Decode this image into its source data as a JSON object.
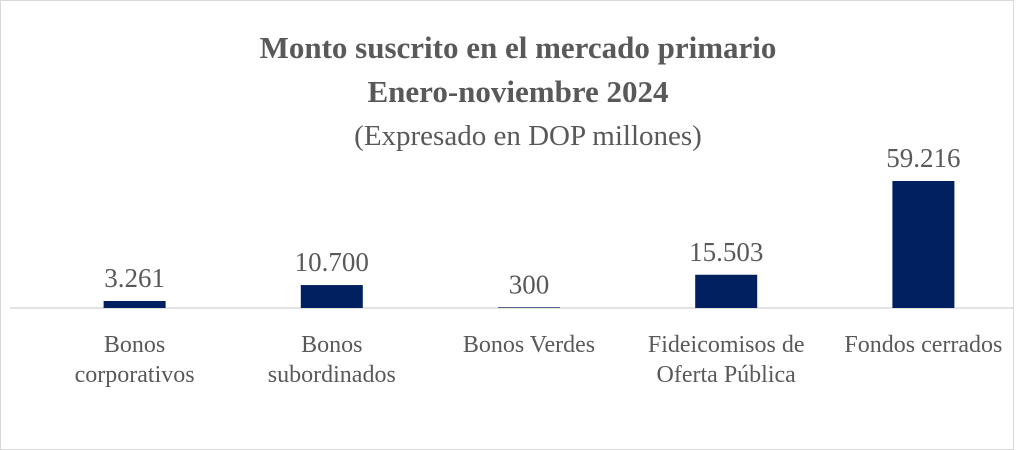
{
  "chart_data": {
    "type": "bar",
    "title": "Monto suscrito en el mercado primario",
    "subtitle": "Enero-noviembre 2024",
    "unit_note": "(Expresado en DOP millones)",
    "categories": [
      "Bonos corporativos",
      "Bonos subordinados",
      "Bonos Verdes",
      "Fideicomisos de Oferta Pública",
      "Fondos cerrados"
    ],
    "values": [
      3261,
      10700,
      300,
      15503,
      59216
    ],
    "value_labels": [
      "3.261",
      "10.700",
      "300",
      "15.503",
      "59.216"
    ],
    "color": "#002060"
  }
}
